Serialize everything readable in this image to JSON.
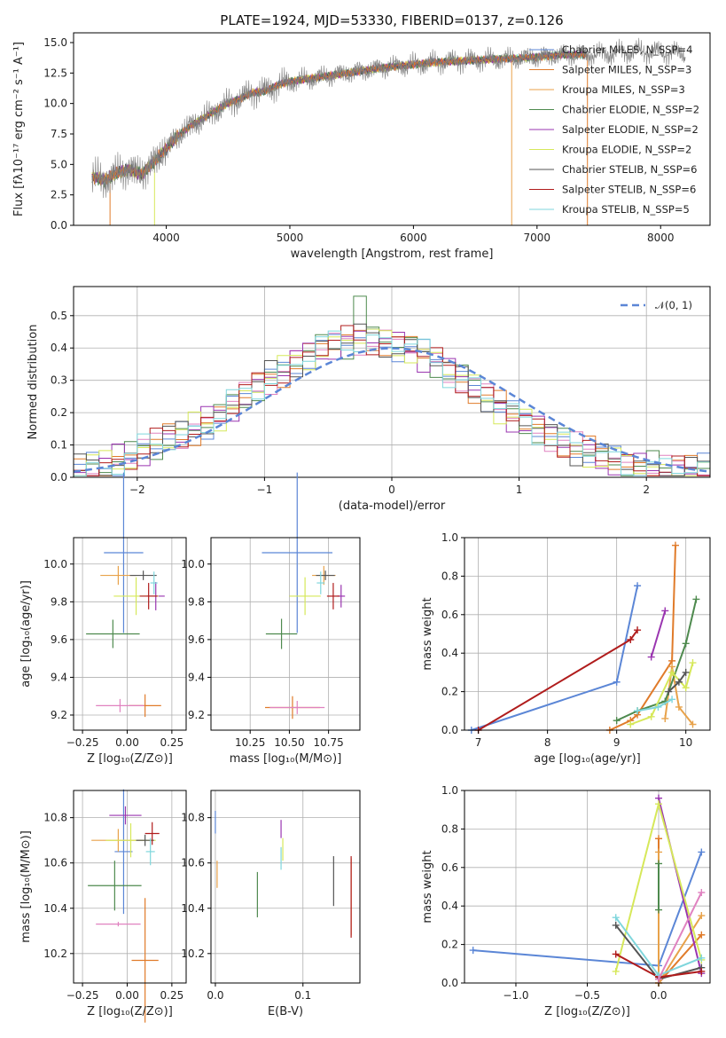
{
  "colors": {
    "chabrier_miles": "#5b86d6",
    "salpeter_miles": "#e07b2a",
    "kroupa_miles": "#e8a24a",
    "chabrier_elodie": "#4e8a4e",
    "salpeter_elodie": "#9a35b0",
    "kroupa_elodie": "#d6e85a",
    "chabrier_stelib": "#555555",
    "salpeter_stelib": "#b01c1c",
    "kroupa_stelib": "#7fd6dc",
    "pink": "#e082c0",
    "data": "#808080",
    "normal": "#5b86d6"
  },
  "chart_data": [
    {
      "type": "line",
      "title": "PLATE=1924, MJD=53330, FIBERID=0137, z=0.126",
      "xlabel": "wavelength [Angstrom, rest frame]",
      "ylabel": "Flux [fλ10⁻¹⁷ erg cm⁻² s⁻¹ A⁻¹]",
      "xlim": [
        3250,
        8400
      ],
      "ylim": [
        0,
        15.8
      ],
      "xticks": [
        "4000",
        "5000",
        "6000",
        "7000",
        "8000"
      ],
      "yticks": [
        "0.0",
        "2.5",
        "5.0",
        "7.5",
        "10.0",
        "12.5",
        "15.0"
      ],
      "legend_position": "upper-right",
      "legend": [
        "Chabrier MILES, N_SSP=4",
        "Salpeter MILES, N_SSP=3",
        "Kroupa MILES, N_SSP=3",
        "Chabrier ELODIE, N_SSP=2",
        "Salpeter ELODIE, N_SSP=2",
        "Kroupa ELODIE, N_SSP=2",
        "Chabrier STELIB, N_SSP=6",
        "Salpeter STELIB, N_SSP=6",
        "Kroupa STELIB, N_SSP=5"
      ],
      "model_range": [
        [
          3400,
          7400
        ],
        [
          3400,
          7400
        ],
        [
          3400,
          6800
        ],
        [
          3400,
          7400
        ],
        [
          3400,
          7400
        ],
        [
          3400,
          7400
        ],
        [
          3400,
          7400
        ],
        [
          3400,
          7400
        ],
        [
          3400,
          7400
        ]
      ],
      "spectrum_points": [
        [
          3400,
          4.0
        ],
        [
          3500,
          3.7
        ],
        [
          3600,
          4.3
        ],
        [
          3700,
          4.6
        ],
        [
          3800,
          4.2
        ],
        [
          3900,
          5.2
        ],
        [
          4000,
          6.3
        ],
        [
          4100,
          7.4
        ],
        [
          4200,
          8.2
        ],
        [
          4300,
          8.8
        ],
        [
          4400,
          9.4
        ],
        [
          4500,
          10.0
        ],
        [
          4600,
          10.4
        ],
        [
          4700,
          10.9
        ],
        [
          4800,
          11.0
        ],
        [
          4900,
          11.5
        ],
        [
          5000,
          11.8
        ],
        [
          5200,
          12.1
        ],
        [
          5400,
          12.4
        ],
        [
          5600,
          12.7
        ],
        [
          5800,
          13.0
        ],
        [
          6000,
          13.2
        ],
        [
          6200,
          13.4
        ],
        [
          6400,
          13.5
        ],
        [
          6600,
          13.6
        ],
        [
          6800,
          13.7
        ],
        [
          7000,
          13.8
        ],
        [
          7200,
          14.0
        ],
        [
          7400,
          14.0
        ],
        [
          7600,
          14.1
        ],
        [
          7800,
          14.3
        ],
        [
          8000,
          14.2
        ],
        [
          8200,
          14.1
        ]
      ]
    },
    {
      "type": "bar",
      "xlabel": "(data-model)/error",
      "ylabel": "Normed distribution",
      "xlim": [
        -2.5,
        2.5
      ],
      "ylim": [
        0,
        0.59
      ],
      "xticks": [
        "−2",
        "−1",
        "0",
        "1",
        "2"
      ],
      "yticks": [
        "0.0",
        "0.1",
        "0.2",
        "0.3",
        "0.4",
        "0.5"
      ],
      "legend": [
        "𝒩(0, 1)"
      ],
      "legend_position": "upper-right",
      "bin_width": 0.1,
      "normal_curve": {
        "mu": 0,
        "sigma": 1
      },
      "histogram_heights": [
        0.02,
        0.03,
        0.04,
        0.05,
        0.06,
        0.08,
        0.1,
        0.12,
        0.13,
        0.15,
        0.17,
        0.19,
        0.22,
        0.25,
        0.28,
        0.31,
        0.33,
        0.36,
        0.38,
        0.4,
        0.41,
        0.42,
        0.43,
        0.43,
        0.42,
        0.41,
        0.4,
        0.38,
        0.36,
        0.33,
        0.31,
        0.28,
        0.25,
        0.22,
        0.19,
        0.17,
        0.15,
        0.13,
        0.11,
        0.09,
        0.08,
        0.06,
        0.05,
        0.04,
        0.03,
        0.03,
        0.02,
        0.02,
        0.02,
        0.02
      ]
    },
    {
      "type": "scatter",
      "xlabel": "Z [log₁₀(Z/Z⊙)]",
      "ylabel": "age  [log₁₀(age/yr)]",
      "xlim": [
        -0.3,
        0.33
      ],
      "ylim": [
        9.12,
        10.14
      ],
      "xticks": [
        "−0.25",
        "0.00",
        "0.25"
      ],
      "yticks": [
        "9.2",
        "9.4",
        "9.6",
        "9.8",
        "10.0"
      ],
      "errorbars": [
        [
          -0.02,
          10.06,
          0.22,
          0.85
        ],
        [
          0.1,
          9.25,
          0.18,
          0.12
        ],
        [
          -0.05,
          9.94,
          0.2,
          0.1
        ],
        [
          -0.08,
          9.63,
          0.3,
          0.15
        ],
        [
          0.16,
          9.83,
          0.1,
          0.15
        ],
        [
          0.05,
          9.83,
          0.25,
          0.2
        ],
        [
          0.09,
          9.94,
          0.15,
          0.05
        ],
        [
          0.12,
          9.83,
          0.1,
          0.14
        ],
        [
          0.15,
          9.9,
          0.04,
          0.12
        ],
        [
          -0.04,
          9.25,
          0.27,
          0.07
        ]
      ]
    },
    {
      "type": "scatter",
      "xlabel": "mass [log₁₀(M/M⊙)]",
      "ylabel": "",
      "xlim": [
        10.0,
        10.95
      ],
      "ylim": [
        9.12,
        10.14
      ],
      "xticks": [
        "10.25",
        "10.50",
        "10.75"
      ],
      "yticks": [
        "9.2",
        "9.4",
        "9.6",
        "9.8",
        "10.0"
      ],
      "errorbars": [
        [
          10.55,
          10.06,
          0.45,
          0.85
        ],
        [
          10.52,
          9.24,
          0.35,
          0.12
        ],
        [
          10.72,
          9.94,
          0.15,
          0.1
        ],
        [
          10.45,
          9.63,
          0.2,
          0.16
        ],
        [
          10.83,
          9.83,
          0.05,
          0.12
        ],
        [
          10.6,
          9.83,
          0.2,
          0.2
        ],
        [
          10.73,
          9.94,
          0.12,
          0.05
        ],
        [
          10.78,
          9.83,
          0.08,
          0.14
        ],
        [
          10.7,
          9.9,
          0.05,
          0.12
        ],
        [
          10.55,
          9.24,
          0.35,
          0.07
        ]
      ]
    },
    {
      "type": "line",
      "xlabel": "age  [log₁₀(age/yr)]",
      "ylabel": "mass weight",
      "xlim": [
        6.8,
        10.35
      ],
      "ylim": [
        0,
        1.0
      ],
      "xticks": [
        "7",
        "8",
        "9",
        "10"
      ],
      "yticks": [
        "0.0",
        "0.2",
        "0.4",
        "0.6",
        "0.8",
        "1.0"
      ],
      "series": [
        {
          "x": [
            6.9,
            9.0,
            9.3
          ],
          "y": [
            0.0,
            0.25,
            0.75
          ]
        },
        {
          "x": [
            8.9,
            9.2,
            9.3,
            9.8,
            9.85
          ],
          "y": [
            0.0,
            0.05,
            0.08,
            0.36,
            0.96
          ]
        },
        {
          "x": [
            9.7,
            9.8,
            9.9,
            10.1
          ],
          "y": [
            0.06,
            0.33,
            0.12,
            0.03
          ]
        },
        {
          "x": [
            9.0,
            9.3,
            9.7,
            10.0,
            10.15
          ],
          "y": [
            0.05,
            0.1,
            0.15,
            0.45,
            0.68
          ]
        },
        {
          "x": [
            9.5,
            9.7
          ],
          "y": [
            0.38,
            0.62
          ]
        },
        {
          "x": [
            9.2,
            9.5,
            9.8,
            10.0,
            10.1
          ],
          "y": [
            0.03,
            0.07,
            0.3,
            0.22,
            0.35
          ]
        },
        {
          "x": [
            9.75,
            9.9,
            10.0
          ],
          "y": [
            0.2,
            0.25,
            0.3
          ]
        },
        {
          "x": [
            7.0,
            9.2,
            9.3
          ],
          "y": [
            0.0,
            0.47,
            0.52
          ]
        },
        {
          "x": [
            9.3,
            9.6,
            9.8
          ],
          "y": [
            0.1,
            0.12,
            0.16
          ]
        }
      ]
    },
    {
      "type": "scatter",
      "xlabel": "Z [log₁₀(Z/Z⊙)]",
      "ylabel": "mass [log₁₀(M/M⊙)]",
      "xlim": [
        -0.3,
        0.33
      ],
      "ylim": [
        10.07,
        10.92
      ],
      "xticks": [
        "−0.25",
        "0.00",
        "0.25"
      ],
      "yticks": [
        "10.2",
        "10.4",
        "10.6",
        "10.8"
      ],
      "errorbars": [
        [
          -0.02,
          10.65,
          0.1,
          0.55
        ],
        [
          0.1,
          10.17,
          0.15,
          0.55
        ],
        [
          -0.05,
          10.7,
          0.3,
          0.1
        ],
        [
          -0.07,
          10.5,
          0.3,
          0.22
        ],
        [
          -0.01,
          10.81,
          0.18,
          0.08
        ],
        [
          0.02,
          10.7,
          0.28,
          0.15
        ],
        [
          0.1,
          10.7,
          0.1,
          0.05
        ],
        [
          0.14,
          10.73,
          0.08,
          0.1
        ],
        [
          0.13,
          10.65,
          0.05,
          0.12
        ],
        [
          -0.05,
          10.33,
          0.25,
          0.02
        ]
      ]
    },
    {
      "type": "scatter",
      "xlabel": "E(B-V)",
      "ylabel": "",
      "xlim": [
        -0.005,
        0.165
      ],
      "ylim": [
        10.07,
        10.92
      ],
      "xticks": [
        "0.0",
        "0.1"
      ],
      "yticks": [
        "10.2",
        "10.4",
        "10.6",
        "10.8"
      ],
      "errorbars": [
        [
          0.0,
          10.78,
          0.0,
          0.1
        ],
        [
          0.155,
          10.45,
          0.0,
          0.34
        ],
        [
          0.002,
          10.55,
          0.0,
          0.12
        ],
        [
          0.048,
          10.46,
          0.0,
          0.2
        ],
        [
          0.075,
          10.75,
          0.0,
          0.08
        ],
        [
          0.077,
          10.66,
          0.0,
          0.1
        ],
        [
          0.135,
          10.52,
          0.0,
          0.22
        ],
        [
          0.155,
          10.45,
          0.0,
          0.36
        ],
        [
          0.075,
          10.62,
          0.0,
          0.1
        ]
      ]
    },
    {
      "type": "line",
      "xlabel": "Z [log₁₀(Z/Z⊙)]",
      "ylabel": "mass weight",
      "xlim": [
        -1.36,
        0.36
      ],
      "ylim": [
        0,
        1.0
      ],
      "xticks": [
        "−1.0",
        "−0.5",
        "0.0"
      ],
      "yticks": [
        "0.0",
        "0.2",
        "0.4",
        "0.6",
        "0.8",
        "1.0"
      ],
      "series": [
        {
          "x": [
            -1.3,
            0.0,
            0.3
          ],
          "y": [
            0.17,
            0.09,
            0.68
          ]
        },
        {
          "x": [
            0.0,
            0.0,
            0.3
          ],
          "y": [
            0.75,
            0.0,
            0.25
          ]
        },
        {
          "x": [
            0.0,
            0.0,
            0.3
          ],
          "y": [
            0.68,
            0.0,
            0.35
          ]
        },
        {
          "x": [
            0.0,
            0.0
          ],
          "y": [
            0.62,
            0.38
          ]
        },
        {
          "x": [
            0.0,
            0.3
          ],
          "y": [
            0.96,
            0.05
          ]
        },
        {
          "x": [
            -0.3,
            0.0,
            0.3
          ],
          "y": [
            0.06,
            0.93,
            0.12
          ]
        },
        {
          "x": [
            -0.3,
            0.0,
            0.3
          ],
          "y": [
            0.3,
            0.02,
            0.08
          ]
        },
        {
          "x": [
            -0.3,
            0.0,
            0.3
          ],
          "y": [
            0.15,
            0.03,
            0.06
          ]
        },
        {
          "x": [
            -0.3,
            0.0,
            0.3
          ],
          "y": [
            0.34,
            0.04,
            0.13
          ]
        },
        {
          "x": [
            0.0,
            0.3
          ],
          "y": [
            0.02,
            0.47
          ]
        }
      ]
    }
  ]
}
